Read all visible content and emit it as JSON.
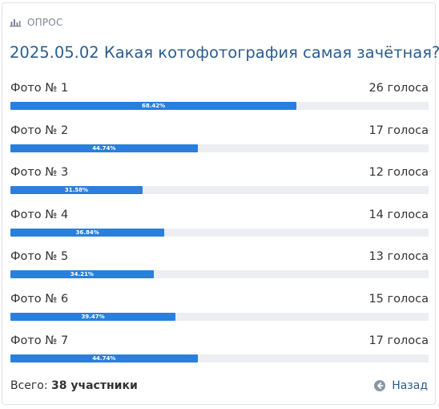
{
  "header": {
    "label": "ОПРОС",
    "icon": "bar-chart-icon"
  },
  "title": "2025.05.02 Какая котофотография самая зачётная?",
  "options": [
    {
      "label": "Фото № 1",
      "votes": "26 голоса",
      "percent_label": "68.42%",
      "percent": 68.42
    },
    {
      "label": "Фото № 2",
      "votes": "17 голоса",
      "percent_label": "44.74%",
      "percent": 44.74
    },
    {
      "label": "Фото № 3",
      "votes": "12 голоса",
      "percent_label": "31.58%",
      "percent": 31.58
    },
    {
      "label": "Фото № 4",
      "votes": "14 голоса",
      "percent_label": "36.84%",
      "percent": 36.84
    },
    {
      "label": "Фото № 5",
      "votes": "13 голоса",
      "percent_label": "34.21%",
      "percent": 34.21
    },
    {
      "label": "Фото № 6",
      "votes": "15 голоса",
      "percent_label": "39.47%",
      "percent": 39.47
    },
    {
      "label": "Фото № 7",
      "votes": "17 голоса",
      "percent_label": "44.74%",
      "percent": 44.74
    }
  ],
  "footer": {
    "total_label": "Всего:",
    "total_value": "38 участники",
    "back_label": "Назад",
    "back_icon": "arrow-left-circle-icon"
  },
  "colors": {
    "accent": "#2a7fdc",
    "title": "#2b5d8f",
    "track": "#eceef1",
    "muted": "#7b8794"
  }
}
